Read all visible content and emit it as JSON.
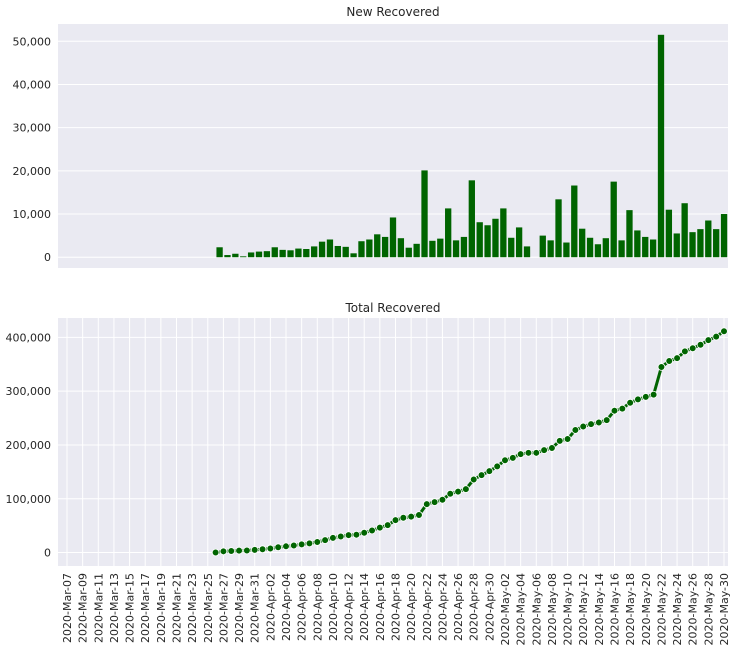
{
  "chart_data": [
    {
      "type": "bar",
      "title": "New Recovered",
      "xlabel": "",
      "ylabel": "",
      "ylim": [
        -2500,
        54000
      ],
      "yticks": [
        0,
        10000,
        20000,
        30000,
        40000,
        50000
      ],
      "ytick_labels": [
        "0",
        "10,000",
        "20,000",
        "30,000",
        "40,000",
        "50,000"
      ],
      "grid": true,
      "color": "#006400",
      "categories": [
        "2020-Mar-07",
        "2020-Mar-08",
        "2020-Mar-09",
        "2020-Mar-10",
        "2020-Mar-11",
        "2020-Mar-12",
        "2020-Mar-13",
        "2020-Mar-14",
        "2020-Mar-15",
        "2020-Mar-16",
        "2020-Mar-17",
        "2020-Mar-18",
        "2020-Mar-19",
        "2020-Mar-20",
        "2020-Mar-21",
        "2020-Mar-22",
        "2020-Mar-23",
        "2020-Mar-24",
        "2020-Mar-25",
        "2020-Mar-26",
        "2020-Mar-27",
        "2020-Mar-28",
        "2020-Mar-29",
        "2020-Mar-30",
        "2020-Mar-31",
        "2020-Apr-01",
        "2020-Apr-02",
        "2020-Apr-03",
        "2020-Apr-04",
        "2020-Apr-05",
        "2020-Apr-06",
        "2020-Apr-07",
        "2020-Apr-08",
        "2020-Apr-09",
        "2020-Apr-10",
        "2020-Apr-11",
        "2020-Apr-12",
        "2020-Apr-13",
        "2020-Apr-14",
        "2020-Apr-15",
        "2020-Apr-16",
        "2020-Apr-17",
        "2020-Apr-18",
        "2020-Apr-19",
        "2020-Apr-20",
        "2020-Apr-21",
        "2020-Apr-22",
        "2020-Apr-23",
        "2020-Apr-24",
        "2020-Apr-25",
        "2020-Apr-26",
        "2020-Apr-27",
        "2020-Apr-28",
        "2020-Apr-29",
        "2020-Apr-30",
        "2020-May-01",
        "2020-May-02",
        "2020-May-03",
        "2020-May-04",
        "2020-May-05",
        "2020-May-06",
        "2020-May-07",
        "2020-May-08",
        "2020-May-09",
        "2020-May-10",
        "2020-May-11",
        "2020-May-12",
        "2020-May-13",
        "2020-May-14",
        "2020-May-15",
        "2020-May-16",
        "2020-May-17",
        "2020-May-18",
        "2020-May-19",
        "2020-May-20",
        "2020-May-21",
        "2020-May-22",
        "2020-May-23",
        "2020-May-24",
        "2020-May-25",
        "2020-May-26",
        "2020-May-27",
        "2020-May-28",
        "2020-May-29",
        "2020-May-30"
      ],
      "values": [
        0,
        0,
        0,
        0,
        0,
        0,
        0,
        0,
        0,
        0,
        0,
        0,
        0,
        0,
        0,
        0,
        0,
        0,
        0,
        0,
        2300,
        500,
        800,
        200,
        1100,
        1300,
        1400,
        2300,
        1700,
        1600,
        2000,
        1900,
        2500,
        3600,
        4100,
        2600,
        2400,
        900,
        3700,
        4100,
        5300,
        4700,
        9200,
        4400,
        2200,
        3100,
        20100,
        3800,
        4300,
        11300,
        3900,
        4700,
        17800,
        8100,
        7400,
        8900,
        11300,
        4500,
        6900,
        2500,
        0,
        5000,
        3900,
        13400,
        3400,
        16600,
        6600,
        4500,
        3000,
        4400,
        17500,
        3900,
        10900,
        6200,
        4700,
        4100,
        51500,
        11000,
        5500,
        12500,
        5800,
        6500,
        8500,
        6500,
        10000
      ]
    },
    {
      "type": "line",
      "title": "Total Recovered",
      "xlabel": "",
      "ylabel": "",
      "ylim": [
        -25000,
        436000
      ],
      "yticks": [
        0,
        100000,
        200000,
        300000,
        400000
      ],
      "ytick_labels": [
        "0",
        "100,000",
        "200,000",
        "300,000",
        "400,000"
      ],
      "grid": true,
      "color": "#006400",
      "marker": "circle",
      "x": [
        "2020-Mar-07",
        "2020-Mar-08",
        "2020-Mar-09",
        "2020-Mar-10",
        "2020-Mar-11",
        "2020-Mar-12",
        "2020-Mar-13",
        "2020-Mar-14",
        "2020-Mar-15",
        "2020-Mar-16",
        "2020-Mar-17",
        "2020-Mar-18",
        "2020-Mar-19",
        "2020-Mar-20",
        "2020-Mar-21",
        "2020-Mar-22",
        "2020-Mar-23",
        "2020-Mar-24",
        "2020-Mar-25",
        "2020-Mar-26",
        "2020-Mar-27",
        "2020-Mar-28",
        "2020-Mar-29",
        "2020-Mar-30",
        "2020-Mar-31",
        "2020-Apr-01",
        "2020-Apr-02",
        "2020-Apr-03",
        "2020-Apr-04",
        "2020-Apr-05",
        "2020-Apr-06",
        "2020-Apr-07",
        "2020-Apr-08",
        "2020-Apr-09",
        "2020-Apr-10",
        "2020-Apr-11",
        "2020-Apr-12",
        "2020-Apr-13",
        "2020-Apr-14",
        "2020-Apr-15",
        "2020-Apr-16",
        "2020-Apr-17",
        "2020-Apr-18",
        "2020-Apr-19",
        "2020-Apr-20",
        "2020-Apr-21",
        "2020-Apr-22",
        "2020-Apr-23",
        "2020-Apr-24",
        "2020-Apr-25",
        "2020-Apr-26",
        "2020-Apr-27",
        "2020-Apr-28",
        "2020-Apr-29",
        "2020-Apr-30",
        "2020-May-01",
        "2020-May-02",
        "2020-May-03",
        "2020-May-04",
        "2020-May-05",
        "2020-May-06",
        "2020-May-07",
        "2020-May-08",
        "2020-May-09",
        "2020-May-10",
        "2020-May-11",
        "2020-May-12",
        "2020-May-13",
        "2020-May-14",
        "2020-May-15",
        "2020-May-16",
        "2020-May-17",
        "2020-May-18",
        "2020-May-19",
        "2020-May-20",
        "2020-May-21",
        "2020-May-22",
        "2020-May-23",
        "2020-May-24",
        "2020-May-25",
        "2020-May-26",
        "2020-May-27",
        "2020-May-28",
        "2020-May-29",
        "2020-May-30"
      ],
      "y": [
        null,
        null,
        null,
        null,
        null,
        null,
        null,
        null,
        null,
        null,
        null,
        null,
        null,
        null,
        null,
        null,
        null,
        null,
        null,
        0,
        2300,
        2800,
        3600,
        3800,
        4900,
        6200,
        7600,
        9900,
        11600,
        13200,
        15200,
        17100,
        19600,
        23200,
        27300,
        29900,
        32300,
        33200,
        36900,
        41000,
        46300,
        51000,
        60200,
        64600,
        66800,
        69900,
        90000,
        93800,
        98100,
        109400,
        113300,
        118000,
        135800,
        143900,
        151300,
        160200,
        171500,
        176000,
        182900,
        185400,
        185400,
        190400,
        194300,
        207700,
        211100,
        227700,
        234300,
        238800,
        241800,
        246200,
        263700,
        267600,
        278500,
        284700,
        289400,
        293500,
        345000,
        356000,
        361500,
        374000,
        379800,
        386300,
        394800,
        401300,
        411300
      ]
    }
  ],
  "xaxis": {
    "tick_labels": [
      "2020-Mar-07",
      "2020-Mar-09",
      "2020-Mar-11",
      "2020-Mar-13",
      "2020-Mar-15",
      "2020-Mar-17",
      "2020-Mar-19",
      "2020-Mar-21",
      "2020-Mar-23",
      "2020-Mar-25",
      "2020-Mar-27",
      "2020-Mar-29",
      "2020-Mar-31",
      "2020-Apr-02",
      "2020-Apr-04",
      "2020-Apr-06",
      "2020-Apr-08",
      "2020-Apr-10",
      "2020-Apr-12",
      "2020-Apr-14",
      "2020-Apr-16",
      "2020-Apr-18",
      "2020-Apr-20",
      "2020-Apr-22",
      "2020-Apr-24",
      "2020-Apr-26",
      "2020-Apr-28",
      "2020-Apr-30",
      "2020-May-02",
      "2020-May-04",
      "2020-May-06",
      "2020-May-08",
      "2020-May-10",
      "2020-May-12",
      "2020-May-14",
      "2020-May-16",
      "2020-May-18",
      "2020-May-20",
      "2020-May-22",
      "2020-May-24",
      "2020-May-26",
      "2020-May-28",
      "2020-May-30"
    ]
  },
  "colors": {
    "plot_background": "#EAEAF2",
    "grid": "#FFFFFF",
    "series": "#006400",
    "marker_edge": "#FFFFFF"
  }
}
